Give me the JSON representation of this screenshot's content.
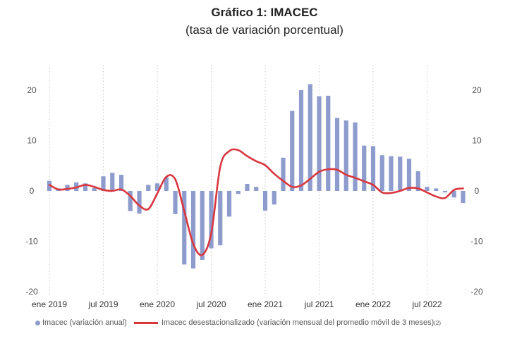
{
  "title": "Gráfico 1:  IMACEC",
  "subtitle": "(tasa de variación porcentual)",
  "legend": {
    "bar_label": "Imacec (variación anual)",
    "line_label": "Imacec desestacionalizado (variación mensual del promedio móvil de 3 meses)",
    "line_note": "(2)"
  },
  "colors": {
    "bar": "#8e9ccd",
    "line": "#d9363e",
    "grid": "#c8c8c8"
  },
  "chart_data": {
    "type": "bar",
    "x_tick_labels": [
      "ene 2019",
      "jul 2019",
      "ene 2020",
      "jul 2020",
      "ene 2021",
      "jul 2021",
      "ene 2022",
      "jul 2022"
    ],
    "y_ticks": [
      20,
      10,
      0,
      -10,
      -20
    ],
    "ylim": [
      -20,
      25
    ],
    "x": [
      "2019-01",
      "2019-02",
      "2019-03",
      "2019-04",
      "2019-05",
      "2019-06",
      "2019-07",
      "2019-08",
      "2019-09",
      "2019-10",
      "2019-11",
      "2019-12",
      "2020-01",
      "2020-02",
      "2020-03",
      "2020-04",
      "2020-05",
      "2020-06",
      "2020-07",
      "2020-08",
      "2020-09",
      "2020-10",
      "2020-11",
      "2020-12",
      "2021-01",
      "2021-02",
      "2021-03",
      "2021-04",
      "2021-05",
      "2021-06",
      "2021-07",
      "2021-08",
      "2021-09",
      "2021-10",
      "2021-11",
      "2021-12",
      "2022-01",
      "2022-02",
      "2022-03",
      "2022-04",
      "2022-05",
      "2022-06",
      "2022-07",
      "2022-08",
      "2022-09",
      "2022-10",
      "2022-11"
    ],
    "series": [
      {
        "name": "Imacec (variación anual)",
        "type": "bar",
        "values": [
          2.0,
          0.5,
          1.2,
          1.7,
          1.5,
          0.6,
          2.9,
          3.6,
          3.2,
          -4.0,
          -4.5,
          1.2,
          1.5,
          2.7,
          -4.6,
          -14.6,
          -15.4,
          -13.7,
          -11.4,
          -10.8,
          -5.1,
          -0.6,
          1.4,
          0.8,
          -3.9,
          -2.7,
          6.6,
          15.9,
          20.0,
          21.2,
          18.8,
          18.9,
          14.5,
          14.0,
          13.6,
          9.0,
          8.9,
          7.1,
          6.9,
          6.8,
          6.4,
          3.9,
          0.8,
          0.5,
          -0.3,
          -1.3,
          -2.4
        ]
      },
      {
        "name": "Imacec desestacionalizado (variación mensual del promedio móvil de 3 meses)",
        "type": "line",
        "values": [
          1.2,
          0.3,
          0.4,
          0.7,
          1.2,
          0.8,
          0.2,
          0.0,
          0.3,
          -1.0,
          -2.9,
          -3.6,
          -0.5,
          2.8,
          2.3,
          -4.0,
          -10.5,
          -12.7,
          -8.4,
          4.8,
          7.9,
          8.1,
          6.9,
          5.9,
          5.1,
          3.4,
          2.0,
          0.8,
          1.1,
          2.4,
          3.8,
          4.3,
          4.2,
          3.2,
          2.6,
          1.9,
          1.2,
          -0.3,
          -0.4,
          0.0,
          0.6,
          0.5,
          -0.3,
          -1.1,
          -1.4,
          0.2,
          0.5
        ]
      }
    ],
    "grid": true,
    "legend_position": "bottom"
  }
}
